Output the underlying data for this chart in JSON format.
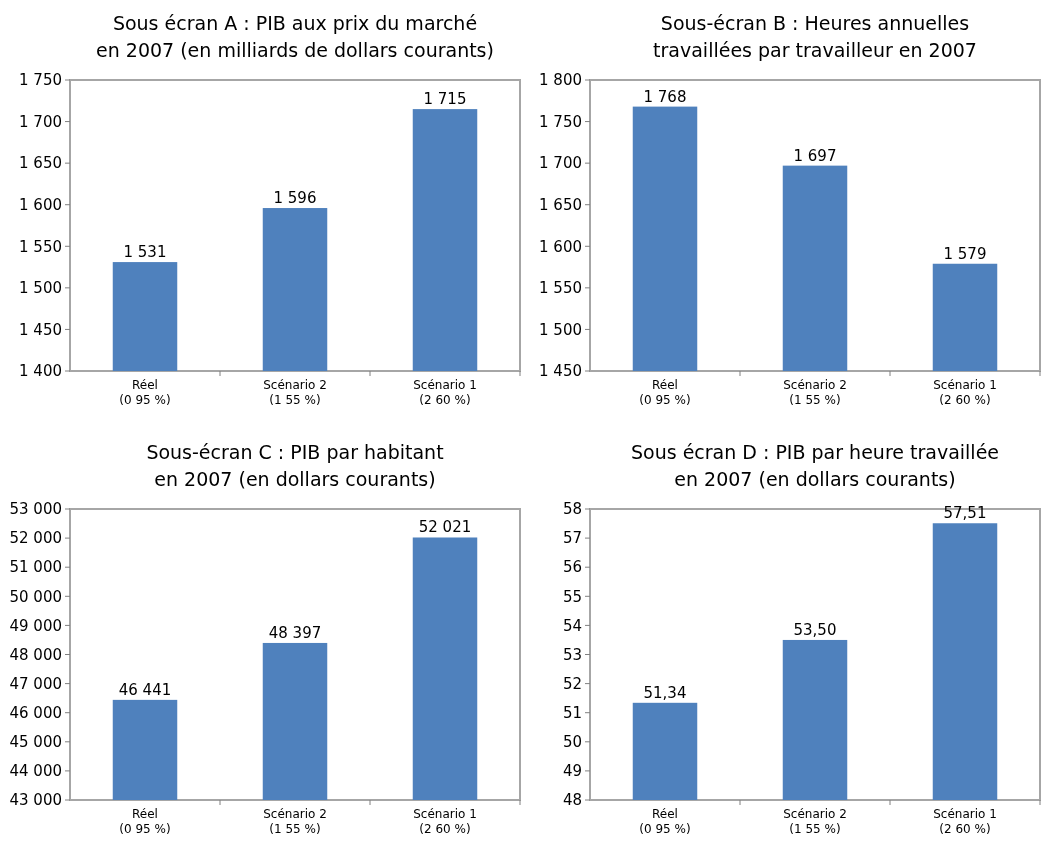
{
  "chart_data": [
    {
      "type": "bar",
      "title": "Sous écran A : PIB aux prix du marché\nen 2007 (en milliards de dollars courants)",
      "categories": [
        "Réel\n(0 95 %)",
        "Scénario 2\n(1 55 %)",
        "Scénario 1\n(2 60 %)"
      ],
      "values": [
        1531,
        1596,
        1715
      ],
      "value_labels": [
        "1 531",
        "1 596",
        "1 715"
      ],
      "color": "#4f81bd",
      "ylim": [
        1400,
        1750
      ],
      "yticks": [
        {
          "value": 1400,
          "label": "1 400"
        },
        {
          "value": 1450,
          "label": "1 450"
        },
        {
          "value": 1500,
          "label": "1 500"
        },
        {
          "value": 1550,
          "label": "1 550"
        },
        {
          "value": 1600,
          "label": "1 600"
        },
        {
          "value": 1650,
          "label": "1 650"
        },
        {
          "value": 1700,
          "label": "1 700"
        },
        {
          "value": 1750,
          "label": "1 750"
        }
      ],
      "grid": false
    },
    {
      "type": "bar",
      "title": "Sous-écran B : Heures annuelles\ntravaillées par travailleur en 2007",
      "categories": [
        "Réel\n(0 95 %)",
        "Scénario 2\n(1 55 %)",
        "Scénario 1\n(2 60 %)"
      ],
      "values": [
        1768,
        1697,
        1579
      ],
      "value_labels": [
        "1 768",
        "1 697",
        "1 579"
      ],
      "color": "#4f81bd",
      "ylim": [
        1450,
        1800
      ],
      "yticks": [
        {
          "value": 1450,
          "label": "1 450"
        },
        {
          "value": 1500,
          "label": "1 500"
        },
        {
          "value": 1550,
          "label": "1 550"
        },
        {
          "value": 1600,
          "label": "1 600"
        },
        {
          "value": 1650,
          "label": "1 650"
        },
        {
          "value": 1700,
          "label": "1 700"
        },
        {
          "value": 1750,
          "label": "1 750"
        },
        {
          "value": 1800,
          "label": "1 800"
        }
      ],
      "grid": false
    },
    {
      "type": "bar",
      "title": "Sous-écran C : PIB par habitant\nen 2007 (en dollars courants)",
      "categories": [
        "Réel\n(0 95 %)",
        "Scénario 2\n(1 55 %)",
        "Scénario 1\n(2 60 %)"
      ],
      "values": [
        46441,
        48397,
        52021
      ],
      "value_labels": [
        "46 441",
        "48 397",
        "52 021"
      ],
      "color": "#4f81bd",
      "ylim": [
        43000,
        53000
      ],
      "yticks": [
        {
          "value": 43000,
          "label": "43 000"
        },
        {
          "value": 44000,
          "label": "44 000"
        },
        {
          "value": 45000,
          "label": "45 000"
        },
        {
          "value": 46000,
          "label": "46 000"
        },
        {
          "value": 47000,
          "label": "47 000"
        },
        {
          "value": 48000,
          "label": "48 000"
        },
        {
          "value": 49000,
          "label": "49 000"
        },
        {
          "value": 50000,
          "label": "50 000"
        },
        {
          "value": 51000,
          "label": "51 000"
        },
        {
          "value": 52000,
          "label": "52 000"
        },
        {
          "value": 53000,
          "label": "53 000"
        }
      ],
      "grid": false
    },
    {
      "type": "bar",
      "title": "Sous écran D : PIB par heure travaillée\nen 2007 (en dollars courants)",
      "categories": [
        "Réel\n(0 95 %)",
        "Scénario 2\n(1 55 %)",
        "Scénario 1\n(2 60 %)"
      ],
      "values": [
        51.34,
        53.5,
        57.51
      ],
      "value_labels": [
        "51,34",
        "53,50",
        "57,51"
      ],
      "color": "#4f81bd",
      "ylim": [
        48,
        58
      ],
      "yticks": [
        48,
        49,
        50,
        51,
        52,
        53,
        54,
        55,
        56,
        57,
        58
      ],
      "grid": false
    }
  ]
}
